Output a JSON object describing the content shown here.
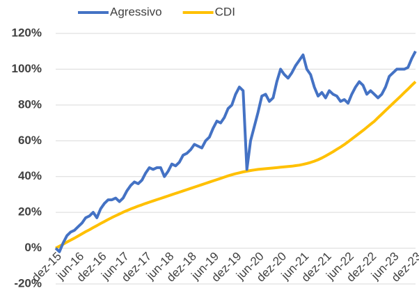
{
  "chart_data": {
    "type": "line",
    "categories": [
      "dez-15",
      null,
      null,
      null,
      null,
      null,
      "jun-16",
      null,
      null,
      null,
      null,
      null,
      "dez-16",
      null,
      null,
      null,
      null,
      null,
      "jun-17",
      null,
      null,
      null,
      null,
      null,
      "dez-17",
      null,
      null,
      null,
      null,
      null,
      "jun-18",
      null,
      null,
      null,
      null,
      null,
      "dez-18",
      null,
      null,
      null,
      null,
      null,
      "jun-19",
      null,
      null,
      null,
      null,
      null,
      "dez-19",
      null,
      null,
      null,
      null,
      null,
      "jun-20",
      null,
      null,
      null,
      null,
      null,
      "dez-20",
      null,
      null,
      null,
      null,
      null,
      "jun-21",
      null,
      null,
      null,
      null,
      null,
      "dez-21",
      null,
      null,
      null,
      null,
      null,
      "jun-22",
      null,
      null,
      null,
      null,
      null,
      "dez-22",
      null,
      null,
      null,
      null,
      null,
      "jun-23",
      null,
      null,
      null,
      null,
      null,
      "dez-23"
    ],
    "series": [
      {
        "name": "Agressivo",
        "color": "#4472c4",
        "values": [
          0,
          -2,
          3,
          7,
          9,
          10,
          12,
          14,
          17,
          18,
          20,
          17,
          22,
          25,
          27,
          27,
          28,
          26,
          28,
          32,
          35,
          37,
          36,
          38,
          42,
          45,
          44,
          45,
          45,
          40,
          43,
          47,
          46,
          48,
          52,
          53,
          55,
          58,
          57,
          56,
          60,
          62,
          67,
          71,
          70,
          73,
          78,
          80,
          86,
          90,
          88,
          44,
          60,
          68,
          76,
          85,
          86,
          82,
          84,
          93,
          100,
          97,
          95,
          98,
          102,
          105,
          108,
          100,
          97,
          90,
          85,
          87,
          84,
          88,
          86,
          85,
          82,
          83,
          81,
          86,
          90,
          93,
          91,
          86,
          88,
          86,
          84,
          86,
          90,
          96,
          98,
          100,
          100,
          100,
          101,
          106,
          110
        ]
      },
      {
        "name": "CDI",
        "color": "#ffc000",
        "values": [
          0,
          1.1,
          2.2,
          3.4,
          4.5,
          5.6,
          6.8,
          8.0,
          9.2,
          10.3,
          11.5,
          12.6,
          13.8,
          14.9,
          16.0,
          17.1,
          18.1,
          19.1,
          20.1,
          21.0,
          21.9,
          22.7,
          23.5,
          24.2,
          25.0,
          25.7,
          26.4,
          27.1,
          27.8,
          28.5,
          29.2,
          29.9,
          30.6,
          31.3,
          32.0,
          32.7,
          33.4,
          34.1,
          34.8,
          35.5,
          36.2,
          36.9,
          37.6,
          38.3,
          39.0,
          39.7,
          40.4,
          41.0,
          41.6,
          42.1,
          42.6,
          43.0,
          43.4,
          43.7,
          44.0,
          44.2,
          44.4,
          44.6,
          44.8,
          45.0,
          45.2,
          45.4,
          45.6,
          45.8,
          46.1,
          46.4,
          46.8,
          47.3,
          47.9,
          48.6,
          49.4,
          50.4,
          51.5,
          52.7,
          53.9,
          55.2,
          56.5,
          57.9,
          59.4,
          61.0,
          62.6,
          64.2,
          65.8,
          67.5,
          69.2,
          70.9,
          72.9,
          74.9,
          76.9,
          78.9,
          80.9,
          82.9,
          84.9,
          86.9,
          88.9,
          91.0,
          93.0
        ]
      }
    ],
    "ylim": [
      -20,
      120
    ],
    "yticks": [
      {
        "value": -20,
        "label": "-20%"
      },
      {
        "value": 0,
        "label": "0%"
      },
      {
        "value": 20,
        "label": "20%"
      },
      {
        "value": 40,
        "label": "40%"
      },
      {
        "value": 60,
        "label": "60%"
      },
      {
        "value": 80,
        "label": "80%"
      },
      {
        "value": 100,
        "label": "100%"
      },
      {
        "value": 120,
        "label": "120%"
      }
    ],
    "grid": true,
    "legend": "top"
  }
}
